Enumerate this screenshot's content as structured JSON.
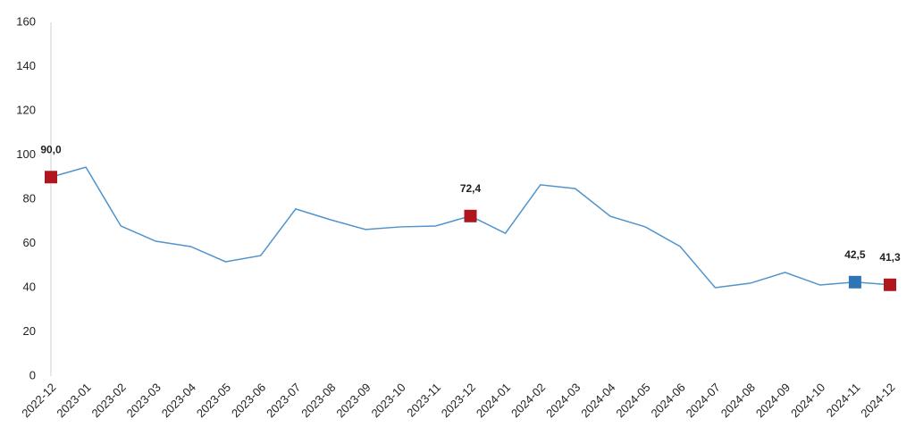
{
  "chart_data": {
    "type": "line",
    "categories": [
      "2022-12",
      "2023-01",
      "2023-02",
      "2023-03",
      "2023-04",
      "2023-05",
      "2023-06",
      "2023-07",
      "2023-08",
      "2023-09",
      "2023-10",
      "2023-11",
      "2023-12",
      "2024-01",
      "2024-02",
      "2024-03",
      "2024-04",
      "2024-05",
      "2024-06",
      "2024-07",
      "2024-08",
      "2024-09",
      "2024-10",
      "2024-11",
      "2024-12"
    ],
    "values": [
      90.0,
      94.5,
      67.9,
      61.0,
      58.6,
      51.7,
      54.5,
      75.6,
      70.7,
      66.3,
      67.5,
      67.9,
      72.4,
      64.6,
      86.5,
      84.8,
      72.3,
      67.5,
      58.6,
      40.0,
      42.0,
      46.9,
      41.2,
      42.5,
      41.3
    ],
    "value_labels": [
      "90,0",
      null,
      null,
      null,
      null,
      null,
      null,
      null,
      null,
      null,
      null,
      null,
      "72,4",
      null,
      null,
      null,
      null,
      null,
      null,
      null,
      null,
      null,
      null,
      "42,5",
      "41,3"
    ],
    "marker_colors": [
      "#b0161e",
      null,
      null,
      null,
      null,
      null,
      null,
      null,
      null,
      null,
      null,
      null,
      "#b0161e",
      null,
      null,
      null,
      null,
      null,
      null,
      null,
      null,
      null,
      null,
      "#2e75b6",
      "#b0161e"
    ],
    "color": "#4f94cd",
    "ylim": [
      0,
      160
    ],
    "yticks": [
      0,
      20,
      40,
      60,
      80,
      100,
      120,
      140,
      160
    ],
    "grid": false
  }
}
